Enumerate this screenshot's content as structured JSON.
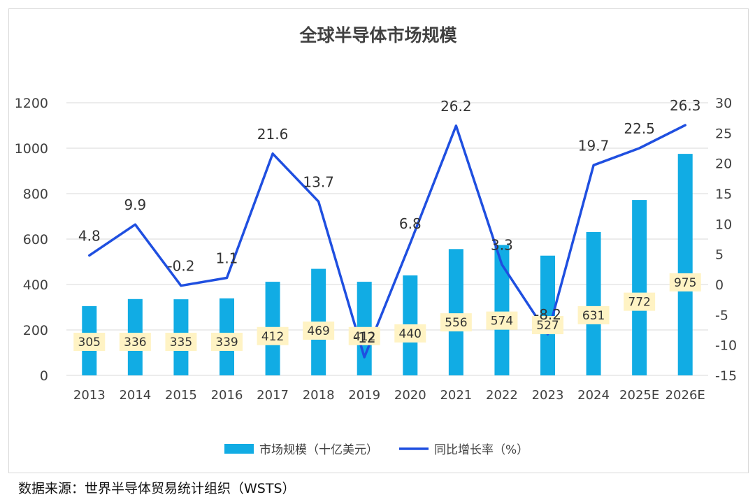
{
  "source_note": "数据来源：世界半导体贸易统计组织（WSTS）",
  "colors": {
    "bar": "#11ACE4",
    "line": "#1F4FE0",
    "label_box": "#FFF3C4",
    "grid": "#D9D9D9",
    "text": "#404040"
  },
  "chart_data": {
    "type": "bar+line",
    "title": "全球半导体市场规模",
    "categories": [
      "2013",
      "2014",
      "2015",
      "2016",
      "2017",
      "2018",
      "2019",
      "2020",
      "2021",
      "2022",
      "2023",
      "2024",
      "2025E",
      "2026E"
    ],
    "series": [
      {
        "name": "市场规模（十亿美元）",
        "type": "bar",
        "axis": "left",
        "values": [
          305,
          336,
          335,
          339,
          412,
          469,
          412,
          440,
          556,
          574,
          527,
          631,
          772,
          975
        ],
        "data_labels": [
          "305",
          "336",
          "335",
          "339",
          "412",
          "469",
          "412",
          "440",
          "556",
          "574",
          "527",
          "631",
          "772",
          "975"
        ]
      },
      {
        "name": "同比增长率（%）",
        "type": "line",
        "axis": "right",
        "values": [
          4.8,
          9.9,
          -0.2,
          1.1,
          21.6,
          13.7,
          -12,
          6.8,
          26.2,
          3.3,
          -8.2,
          19.7,
          22.5,
          26.3
        ],
        "data_labels": [
          "4.8",
          "9.9",
          "-0.2",
          "1.1",
          "21.6",
          "13.7",
          "-12",
          "6.8",
          "26.2",
          "3.3",
          "-8.2",
          "19.7",
          "22.5",
          "26.3"
        ]
      }
    ],
    "y_left": {
      "min": 0,
      "max": 1200,
      "ticks": [
        0,
        200,
        400,
        600,
        800,
        1000,
        1200
      ]
    },
    "y_right": {
      "min": -15,
      "max": 30,
      "ticks": [
        -15,
        -10,
        -5,
        0,
        5,
        10,
        15,
        20,
        25,
        30
      ]
    },
    "grid": true,
    "legend_position": "bottom"
  }
}
